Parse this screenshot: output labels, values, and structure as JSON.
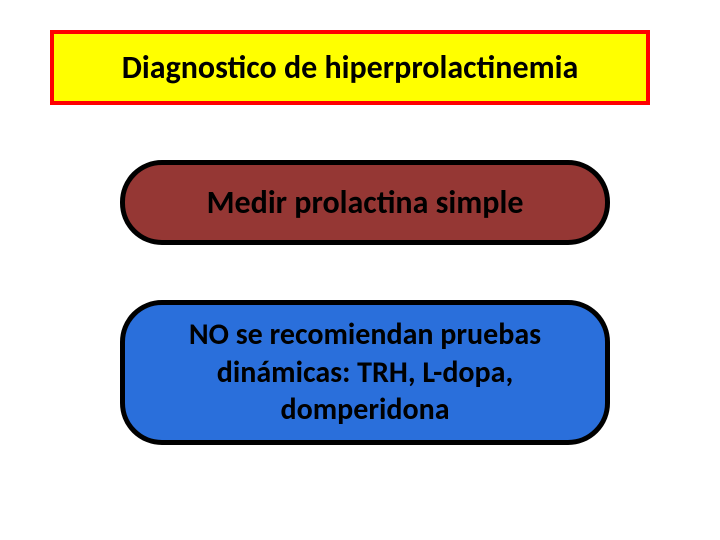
{
  "title": {
    "text": "Diagnostico de hiperprolactinemia",
    "background_color": "#ffff00",
    "border_color": "#ff0000",
    "text_color": "#000000",
    "fontsize": 32
  },
  "step1": {
    "text": "Medir prolactina simple",
    "background_color": "#953734",
    "border_color": "#000000",
    "text_color": "#000000",
    "fontsize": 32
  },
  "step2": {
    "text": "NO se recomiendan pruebas dinámicas: TRH, L-dopa, domperidona",
    "background_color": "#2a6fdb",
    "border_color": "#000000",
    "text_color": "#000000",
    "fontsize": 30
  },
  "page_background": "#ffffff"
}
